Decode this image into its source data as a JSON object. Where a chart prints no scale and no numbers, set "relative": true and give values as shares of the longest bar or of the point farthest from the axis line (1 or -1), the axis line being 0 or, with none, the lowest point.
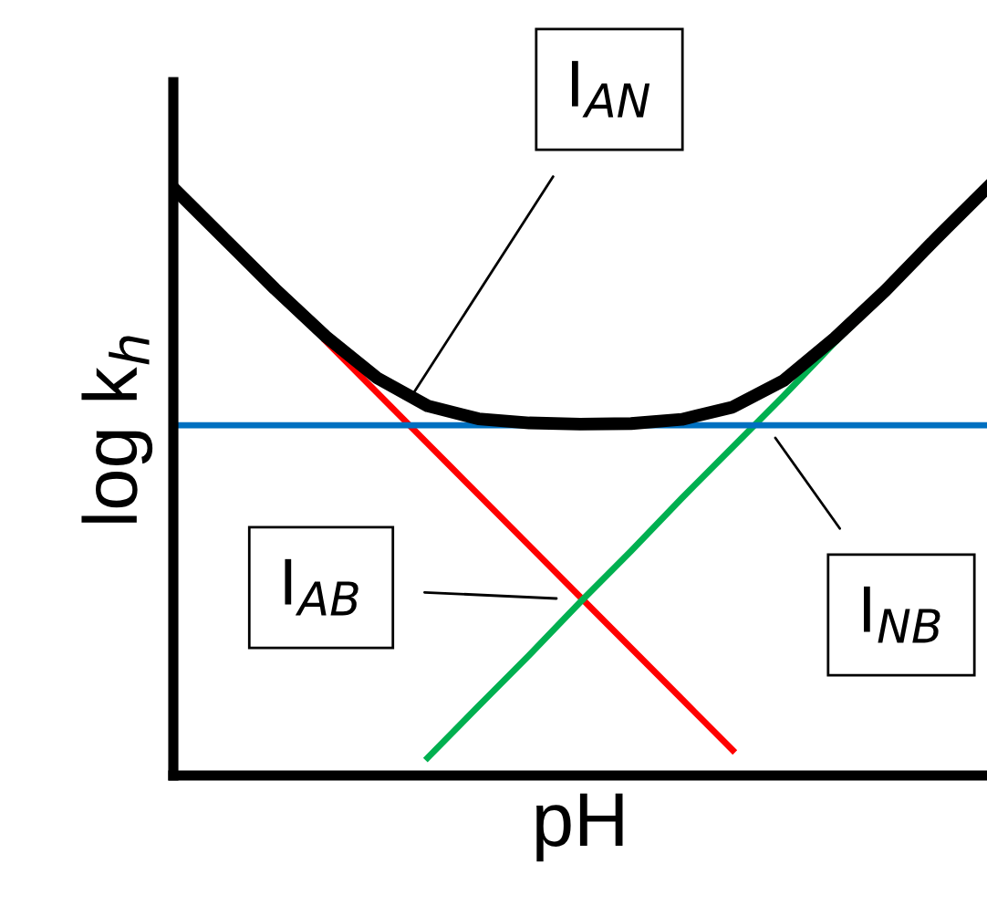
{
  "chart_data": {
    "type": "line",
    "relative": true,
    "xlabel": "pH",
    "ylabel": "log k$_{h}$",
    "categories": [
      null,
      null,
      null,
      null,
      null,
      null,
      null,
      null,
      null,
      null,
      null,
      null,
      null,
      null,
      null,
      null,
      null
    ],
    "series": [
      {
        "color": "#ff0000",
        "values": [
          null,
          null,
          null,
          0.739,
          0.652,
          0.565,
          0.478,
          0.391,
          0.304,
          0.217,
          0.13,
          0.043,
          null,
          null,
          null,
          null,
          null
        ]
      },
      {
        "color": "#00b050",
        "values": [
          null,
          null,
          null,
          null,
          null,
          0.03,
          0.118,
          0.205,
          0.295,
          0.382,
          0.472,
          0.559,
          0.646,
          0.736,
          0.823,
          null,
          null
        ]
      },
      {
        "color": "#0070c0",
        "values": [
          0.596,
          0.596,
          0.596,
          0.596,
          0.596,
          0.596,
          0.596,
          0.596,
          0.596,
          0.596,
          0.596,
          0.596,
          0.596,
          0.596,
          0.596,
          0.596,
          0.596
        ]
      },
      {
        "color": "#000000",
        "values": [
          1,
          0.914,
          0.828,
          0.747,
          0.677,
          0.629,
          0.607,
          0.6,
          0.598,
          0.599,
          0.606,
          0.627,
          0.672,
          0.744,
          0.825,
          0.914,
          1
        ]
      }
    ],
    "annotations": [
      "I$_{AN}$",
      "I$_{AB}$",
      "I$_{NB}$"
    ],
    "legend": false,
    "tick_labels": false,
    "marker": "none",
    "line_style": "solid"
  }
}
